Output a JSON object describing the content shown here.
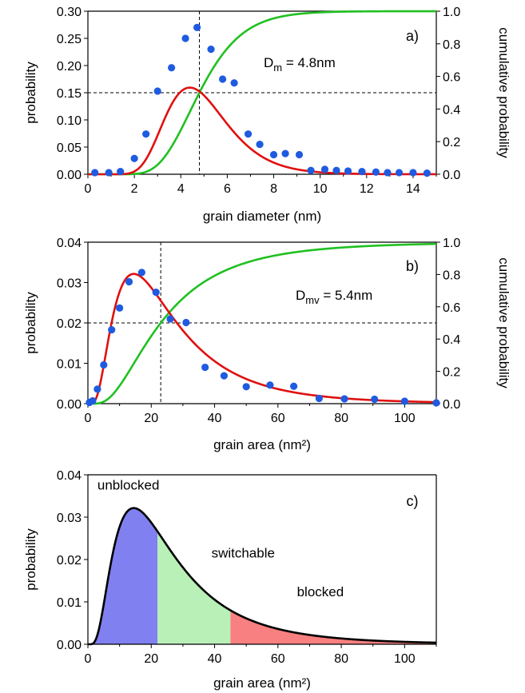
{
  "chart_data": [
    {
      "panel": "a)",
      "type": "scatter",
      "xlabel": "grain diameter (nm)",
      "ylabel": "probability",
      "y2label": "cumulative probability",
      "xlim": [
        0,
        15
      ],
      "ylim": [
        0,
        0.3
      ],
      "y2lim": [
        0,
        1.0
      ],
      "xticks": [
        "0",
        "2",
        "4",
        "6",
        "8",
        "10",
        "12",
        "14"
      ],
      "yticks": [
        "0.00",
        "0.05",
        "0.10",
        "0.15",
        "0.20",
        "0.25",
        "0.30"
      ],
      "y2ticks": [
        "0.0",
        "0.2",
        "0.4",
        "0.6",
        "0.8",
        "1.0"
      ],
      "annotation": {
        "main": "D",
        "sub": "m",
        "rest": " = 4.8nm"
      },
      "vline_x": 4.8,
      "hline_y2": 0.5,
      "points": {
        "x": [
          0.3,
          0.9,
          1.4,
          2.0,
          2.5,
          3.0,
          3.6,
          4.2,
          4.7,
          5.3,
          5.8,
          6.3,
          6.9,
          7.4,
          8.0,
          8.5,
          9.1,
          9.6,
          10.2,
          10.7,
          11.2,
          11.8,
          12.4,
          12.9,
          13.4,
          14.0,
          14.6
        ],
        "y": [
          0.003,
          0.003,
          0.005,
          0.029,
          0.074,
          0.153,
          0.196,
          0.25,
          0.27,
          0.23,
          0.175,
          0.168,
          0.074,
          0.055,
          0.036,
          0.038,
          0.036,
          0.007,
          0.009,
          0.007,
          0.006,
          0.005,
          0.004,
          0.003,
          0.003,
          0.003,
          0.002
        ]
      },
      "fit": {
        "distribution": "lognormal",
        "median": 4.8,
        "sigma": 0.3
      },
      "series": [
        {
          "role": "data",
          "color": "#1f5be0"
        },
        {
          "role": "fit",
          "color": "#e01010"
        },
        {
          "role": "cumulative",
          "color": "#20c020"
        }
      ]
    },
    {
      "panel": "b)",
      "type": "scatter",
      "xlabel": "grain area (nm²)",
      "ylabel": "probability",
      "y2label": "cumulative probability",
      "xlim": [
        0,
        110
      ],
      "ylim": [
        0,
        0.04
      ],
      "y2lim": [
        0,
        1.0
      ],
      "xticks": [
        "0",
        "20",
        "40",
        "60",
        "80",
        "100"
      ],
      "yticks": [
        "0.00",
        "0.01",
        "0.02",
        "0.03",
        "0.04"
      ],
      "y2ticks": [
        "0.0",
        "0.2",
        "0.4",
        "0.6",
        "0.8",
        "1.0"
      ],
      "annotation": {
        "main": "D",
        "sub": "mv",
        "rest": " = 5.4nm"
      },
      "vline_x": 23,
      "hline_y2": 0.5,
      "points": {
        "x": [
          0.5,
          1.5,
          3,
          5,
          7.5,
          10,
          13,
          17,
          21.5,
          26,
          31,
          37,
          43,
          50,
          57.5,
          65,
          73,
          81,
          90.5,
          100,
          110
        ],
        "y": [
          0.0003,
          0.0007,
          0.0036,
          0.0096,
          0.0183,
          0.0237,
          0.0302,
          0.0325,
          0.0276,
          0.021,
          0.0201,
          0.009,
          0.0069,
          0.0042,
          0.0046,
          0.0043,
          0.0013,
          0.0012,
          0.0011,
          0.0006,
          0.0002
        ]
      },
      "fit": {
        "distribution": "lognormal",
        "median": 23,
        "sigma": 0.68
      },
      "series": [
        {
          "role": "data",
          "color": "#1f5be0"
        },
        {
          "role": "fit",
          "color": "#e01010"
        },
        {
          "role": "cumulative",
          "color": "#20c020"
        }
      ]
    },
    {
      "panel": "c)",
      "type": "area",
      "xlabel": "grain area (nm²)",
      "ylabel": "probability",
      "xlim": [
        0,
        110
      ],
      "ylim": [
        0,
        0.04
      ],
      "xticks": [
        "0",
        "20",
        "40",
        "60",
        "80",
        "100"
      ],
      "yticks": [
        "0.00",
        "0.01",
        "0.02",
        "0.03",
        "0.04"
      ],
      "curve": {
        "distribution": "lognormal",
        "median": 23,
        "sigma": 0.68,
        "color": "#000000"
      },
      "regions": [
        {
          "label": "unblocked",
          "from": 0,
          "to": 22,
          "color": "#8080f0",
          "label_at": [
            3,
            0.0365
          ]
        },
        {
          "label": "switchable",
          "from": 22,
          "to": 45,
          "color": "#b8f0b8",
          "label_at": [
            39,
            0.0205
          ]
        },
        {
          "label": "blocked",
          "from": 45,
          "to": 110,
          "color": "#f88080",
          "label_at": [
            66,
            0.0113
          ]
        }
      ]
    }
  ]
}
